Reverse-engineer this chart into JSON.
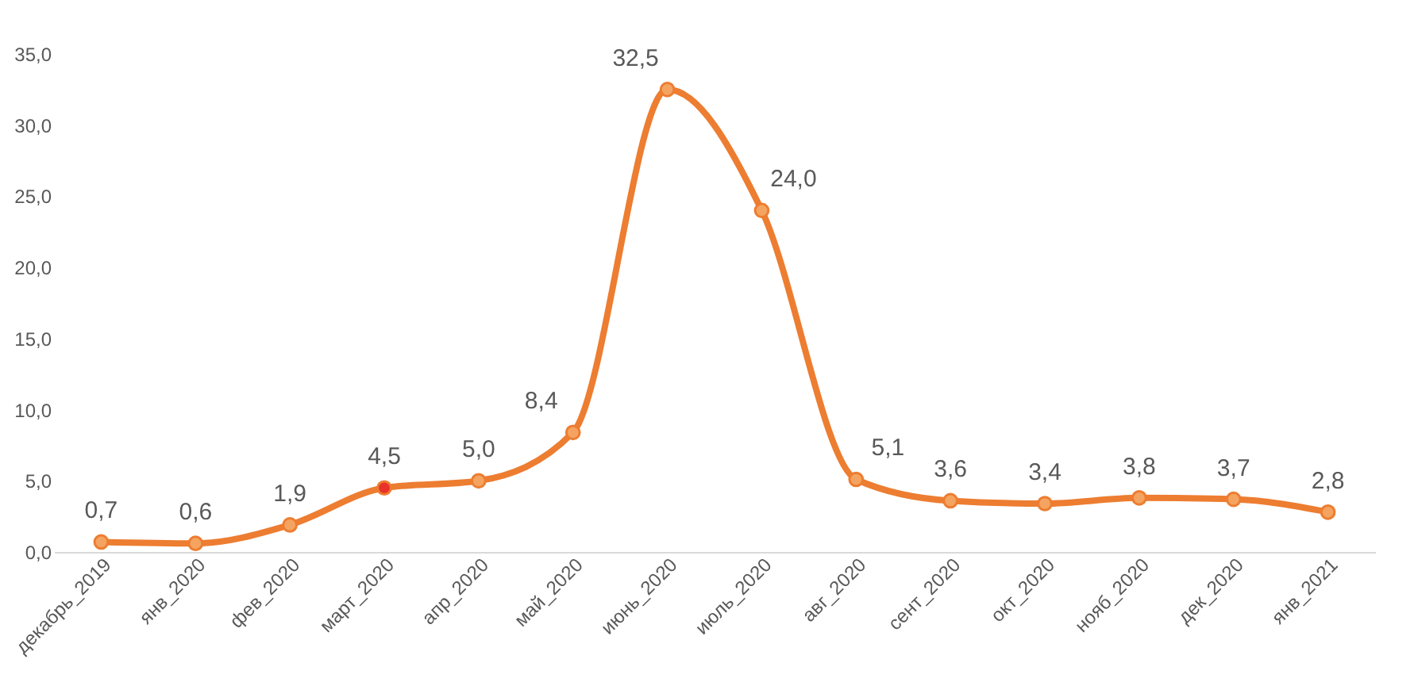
{
  "chart_data": {
    "type": "line",
    "categories": [
      "декабрь_2019",
      "янв_2020",
      "фев_2020",
      "март_2020",
      "апр_2020",
      "май_2020",
      "июнь_2020",
      "июль_2020",
      "авг_2020",
      "сент_2020",
      "окт_2020",
      "нояб_2020",
      "дек_2020",
      "янв_2021"
    ],
    "series": [
      {
        "color": "#ed7d31",
        "colors": [
          "#f4a460",
          "#f4a460",
          "#f4a460",
          "#e8322a",
          "#f4a460",
          "#f4a460",
          "#f4a460",
          "#f4a460",
          "#f4a460",
          "#f4a460",
          "#f4a460",
          "#f4a460",
          "#f4a460",
          "#f4a460"
        ],
        "values": [
          0.7,
          0.6,
          1.9,
          4.5,
          5.0,
          8.4,
          32.5,
          24.0,
          5.1,
          3.6,
          3.4,
          3.8,
          3.7,
          2.8
        ],
        "value_labels": [
          "0,7",
          "0,6",
          "1,9",
          "4,5",
          "5,0",
          "8,4",
          "32,5",
          "24,0",
          "5,1",
          "3,6",
          "3,4",
          "3,8",
          "3,7",
          "2,8"
        ]
      }
    ],
    "ylim": [
      0,
      35
    ],
    "yticks": [
      {
        "value": 0,
        "label": "0,0"
      },
      {
        "value": 5,
        "label": "5,0"
      },
      {
        "value": 10,
        "label": "10,0"
      },
      {
        "value": 15,
        "label": "15,0"
      },
      {
        "value": 20,
        "label": "20,0"
      },
      {
        "value": 25,
        "label": "25,0"
      },
      {
        "value": 30,
        "label": "30,0"
      },
      {
        "value": 35,
        "label": "35,0"
      }
    ],
    "grid": false,
    "marker": "circle",
    "line_style": "solid"
  }
}
